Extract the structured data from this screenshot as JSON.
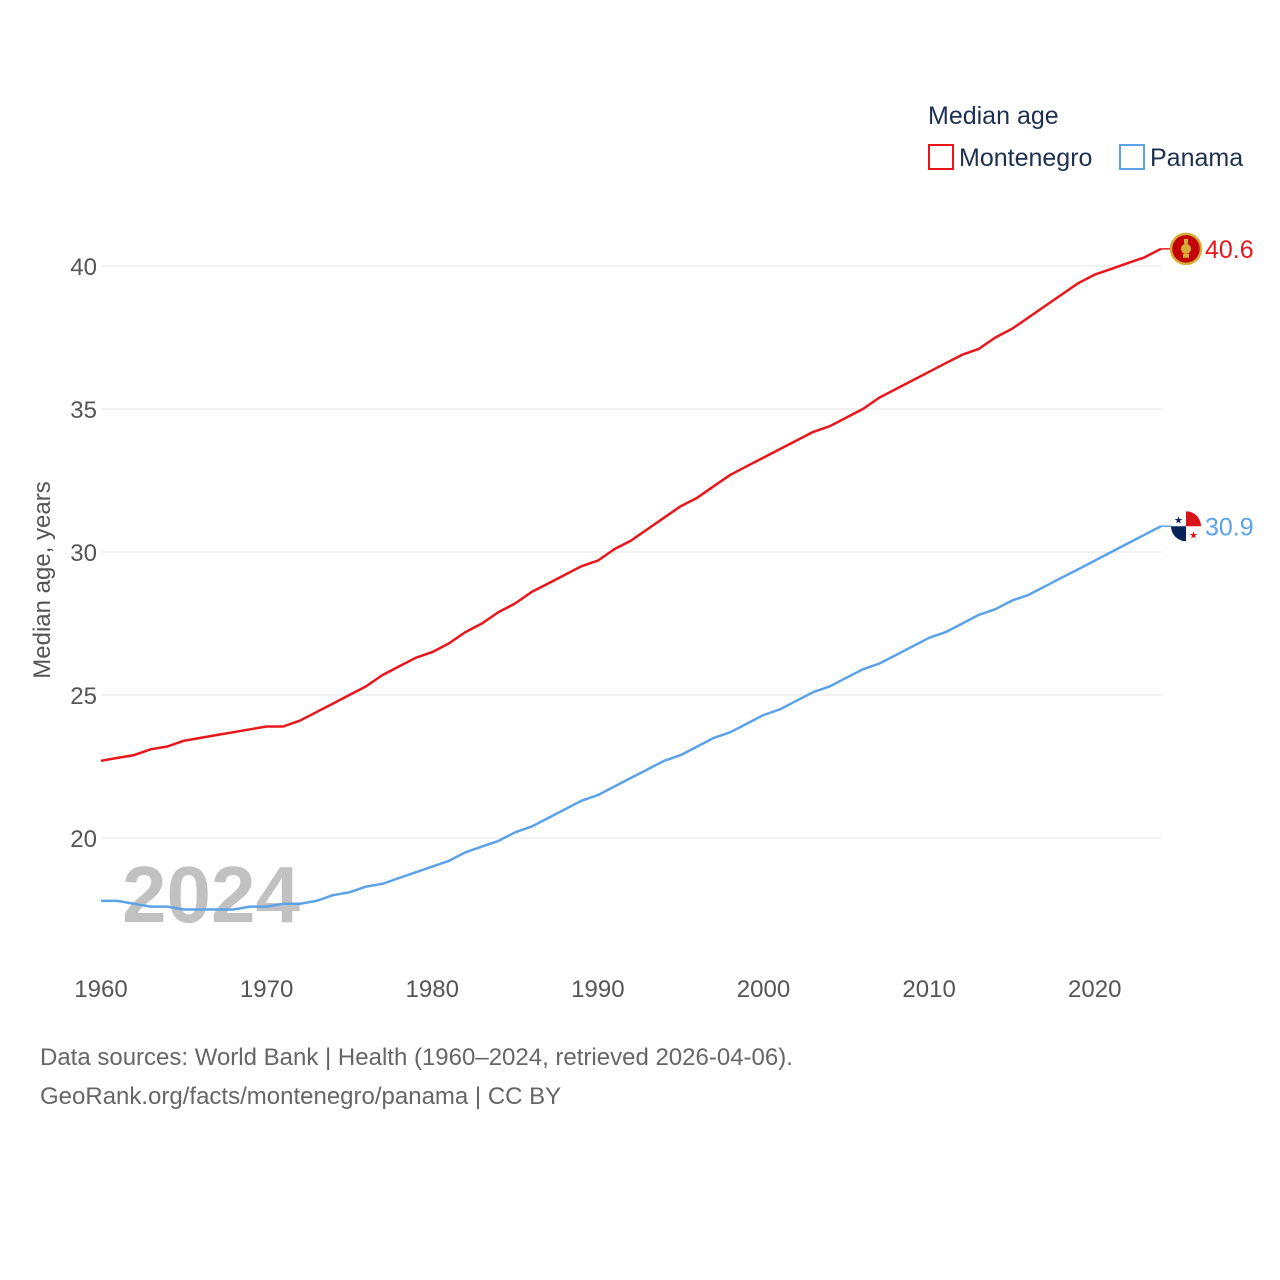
{
  "chart_data": {
    "type": "line",
    "title": "Median age",
    "ylabel": "Median age, years",
    "xlabel": "",
    "xlim": [
      1960,
      2024
    ],
    "ylim": [
      16.5,
      42
    ],
    "yticks": [
      20,
      25,
      30,
      35,
      40
    ],
    "xticks": [
      1960,
      1970,
      1980,
      1990,
      2000,
      2010,
      2020
    ],
    "grid": true,
    "legend_position": "top-right",
    "year_watermark": "2024",
    "x": [
      1960,
      1961,
      1962,
      1963,
      1964,
      1965,
      1966,
      1967,
      1968,
      1969,
      1970,
      1971,
      1972,
      1973,
      1974,
      1975,
      1976,
      1977,
      1978,
      1979,
      1980,
      1981,
      1982,
      1983,
      1984,
      1985,
      1986,
      1987,
      1988,
      1989,
      1990,
      1991,
      1992,
      1993,
      1994,
      1995,
      1996,
      1997,
      1998,
      1999,
      2000,
      2001,
      2002,
      2003,
      2004,
      2005,
      2006,
      2007,
      2008,
      2009,
      2010,
      2011,
      2012,
      2013,
      2014,
      2015,
      2016,
      2017,
      2018,
      2019,
      2020,
      2021,
      2022,
      2023,
      2024
    ],
    "series": [
      {
        "name": "Montenegro",
        "color": "#e8161b",
        "end_label": "40.6",
        "flag": "montenegro-flag-icon",
        "values": [
          22.7,
          22.8,
          22.9,
          23.1,
          23.2,
          23.4,
          23.5,
          23.6,
          23.7,
          23.8,
          23.9,
          23.9,
          24.1,
          24.4,
          24.7,
          25.0,
          25.3,
          25.7,
          26.0,
          26.3,
          26.5,
          26.8,
          27.2,
          27.5,
          27.9,
          28.2,
          28.6,
          28.9,
          29.2,
          29.5,
          29.7,
          30.1,
          30.4,
          30.8,
          31.2,
          31.6,
          31.9,
          32.3,
          32.7,
          33.0,
          33.3,
          33.6,
          33.9,
          34.2,
          34.4,
          34.7,
          35.0,
          35.4,
          35.7,
          36.0,
          36.3,
          36.6,
          36.9,
          37.1,
          37.5,
          37.8,
          38.2,
          38.6,
          39.0,
          39.4,
          39.7,
          39.9,
          40.1,
          40.3,
          40.6
        ]
      },
      {
        "name": "Panama",
        "color": "#5ba3e6",
        "end_label": "30.9",
        "flag": "panama-flag-icon",
        "values": [
          17.8,
          17.8,
          17.7,
          17.6,
          17.6,
          17.5,
          17.5,
          17.5,
          17.5,
          17.6,
          17.6,
          17.7,
          17.7,
          17.8,
          18.0,
          18.1,
          18.3,
          18.4,
          18.6,
          18.8,
          19.0,
          19.2,
          19.5,
          19.7,
          19.9,
          20.2,
          20.4,
          20.7,
          21.0,
          21.3,
          21.5,
          21.8,
          22.1,
          22.4,
          22.7,
          22.9,
          23.2,
          23.5,
          23.7,
          24.0,
          24.3,
          24.5,
          24.8,
          25.1,
          25.3,
          25.6,
          25.9,
          26.1,
          26.4,
          26.7,
          27.0,
          27.2,
          27.5,
          27.8,
          28.0,
          28.3,
          28.5,
          28.8,
          29.1,
          29.4,
          29.7,
          30.0,
          30.3,
          30.6,
          30.9
        ]
      }
    ]
  },
  "footer": {
    "line1": "Data sources: World Bank | Health (1960–2024, retrieved 2026-04-06).",
    "line2": "GeoRank.org/facts/montenegro/panama | CC BY"
  }
}
